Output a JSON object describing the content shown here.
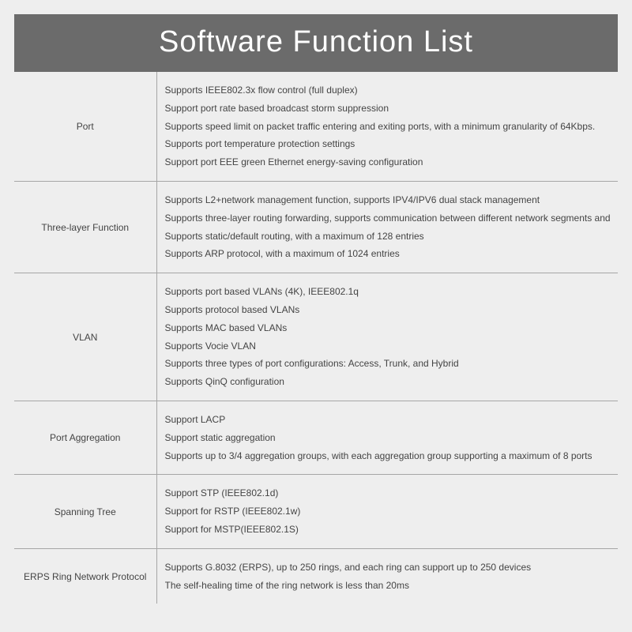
{
  "title": "Software Function List",
  "header_bg_color": "#6b6b6b",
  "header_text_color": "#ffffff",
  "page_bg_color": "#eeeeee",
  "row_border_color": "#a6a6a6",
  "cell_text_color": "#444444",
  "title_fontsize": 38,
  "body_fontsize": 12,
  "rows": [
    {
      "category": "Port",
      "items": [
        "Supports IEEE802.3x flow control (full duplex)",
        "Support port rate based broadcast storm suppression",
        "Supports speed limit on packet traffic entering and exiting ports, with a minimum granularity of 64Kbps.",
        "Supports port temperature protection settings",
        "Support port EEE green Ethernet energy-saving configuration"
      ]
    },
    {
      "category": "Three-layer Function",
      "items": [
        "Supports L2+network management function, supports IPV4/IPV6 dual stack management",
        "Supports three-layer routing forwarding, supports communication between different network segments and VLANs",
        "Supports static/default routing, with a maximum of 128 entries",
        "Supports ARP protocol, with a maximum of 1024 entries"
      ]
    },
    {
      "category": "VLAN",
      "items": [
        "Supports port based VLANs (4K), IEEE802.1q",
        "Supports protocol based VLANs",
        "Supports MAC based VLANs",
        "Supports Vocie VLAN",
        "Supports three types of port configurations: Access, Trunk, and Hybrid",
        "Supports QinQ configuration"
      ]
    },
    {
      "category": "Port Aggregation",
      "items": [
        "Support LACP",
        "Support static aggregation",
        "Supports up to 3/4 aggregation groups, with each aggregation group supporting a maximum of 8 ports"
      ]
    },
    {
      "category": "Spanning Tree",
      "items": [
        "Support STP (IEEE802.1d)",
        "Support for RSTP (IEEE802.1w)",
        "Support for MSTP(IEEE802.1S)"
      ]
    },
    {
      "category": "ERPS Ring Network Protocol",
      "items": [
        "Supports G.8032 (ERPS), up to 250 rings, and each ring can support up to 250 devices",
        "The self-healing time of the ring network is less than 20ms"
      ]
    }
  ]
}
